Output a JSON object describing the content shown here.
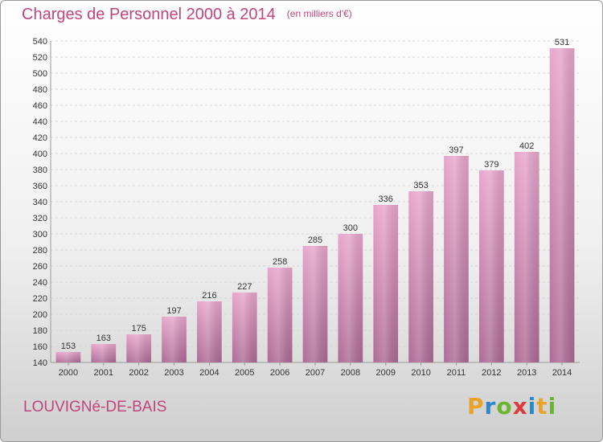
{
  "header": {
    "title": "Charges de Personnel 2000 à 2014",
    "subtitle": "(en milliers d'€)"
  },
  "footer": {
    "location": "LOUVIGNé-DE-BAIS",
    "logo": {
      "letters": [
        "P",
        "r",
        "o",
        "x",
        "i",
        "t",
        "i"
      ],
      "colors": [
        "#e8a32a",
        "#2f86c8",
        "#6bb531",
        "#e03a3a",
        "#2f86c8",
        "#e8a32a",
        "#6bb531"
      ]
    }
  },
  "chart_data": {
    "type": "bar",
    "title": "Charges de Personnel 2000 à 2014",
    "subtitle": "(en milliers d'€)",
    "categories": [
      "2000",
      "2001",
      "2002",
      "2003",
      "2004",
      "2005",
      "2006",
      "2007",
      "2008",
      "2009",
      "2010",
      "2011",
      "2012",
      "2013",
      "2014"
    ],
    "values": [
      153,
      163,
      175,
      197,
      216,
      227,
      258,
      285,
      300,
      336,
      353,
      397,
      379,
      402,
      531
    ],
    "ylim": [
      140,
      540
    ],
    "yticks": [
      140,
      160,
      180,
      200,
      220,
      240,
      260,
      280,
      300,
      320,
      340,
      360,
      380,
      400,
      420,
      440,
      460,
      480,
      500,
      520,
      540
    ],
    "grid": true,
    "data_labels": true,
    "colors": {
      "bar_light": "#e8a6cc",
      "bar_dark": "#ad6b95",
      "accent": "#c0457d"
    }
  }
}
